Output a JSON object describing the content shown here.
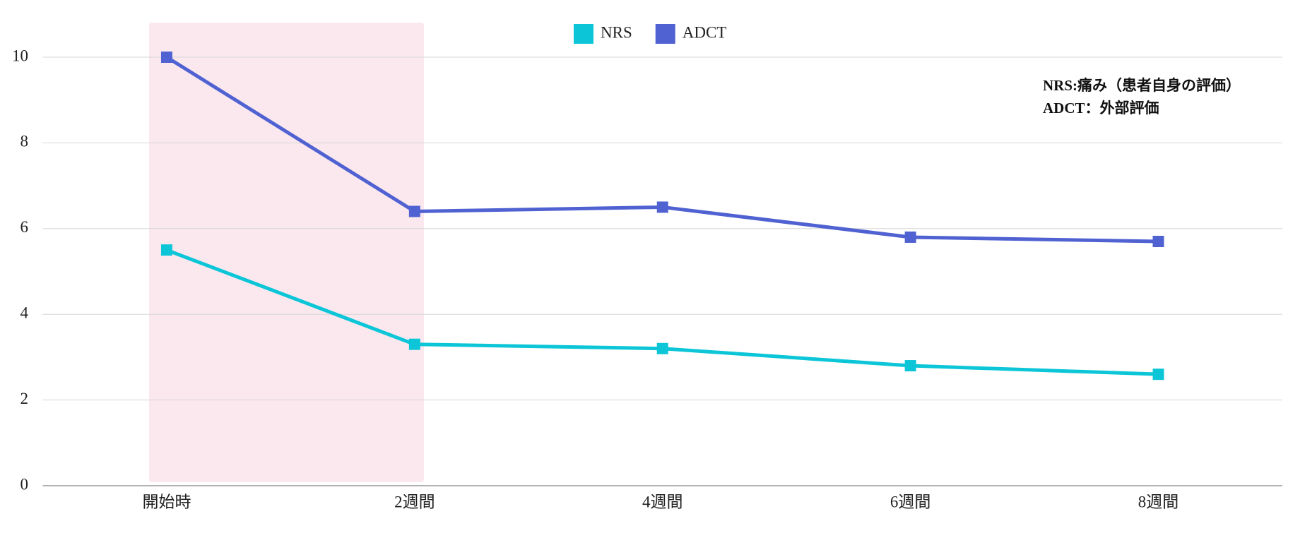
{
  "chart_data": {
    "type": "line",
    "categories": [
      "開始時",
      "2週間",
      "4週間",
      "6週間",
      "8週間"
    ],
    "series": [
      {
        "name": "NRS",
        "color": "#0cc6d8",
        "values": [
          5.5,
          3.3,
          3.2,
          2.8,
          2.6
        ]
      },
      {
        "name": "ADCT",
        "color": "#5062d2",
        "values": [
          10,
          6.4,
          6.5,
          5.8,
          5.7
        ]
      }
    ],
    "ylim": [
      0,
      10
    ],
    "yticks": [
      0,
      2,
      4,
      6,
      8,
      10
    ],
    "grid": true,
    "legend": "top",
    "annotations": [
      "NRS:痛み（患者自身の評価）",
      "ADCT：外部評価"
    ]
  }
}
